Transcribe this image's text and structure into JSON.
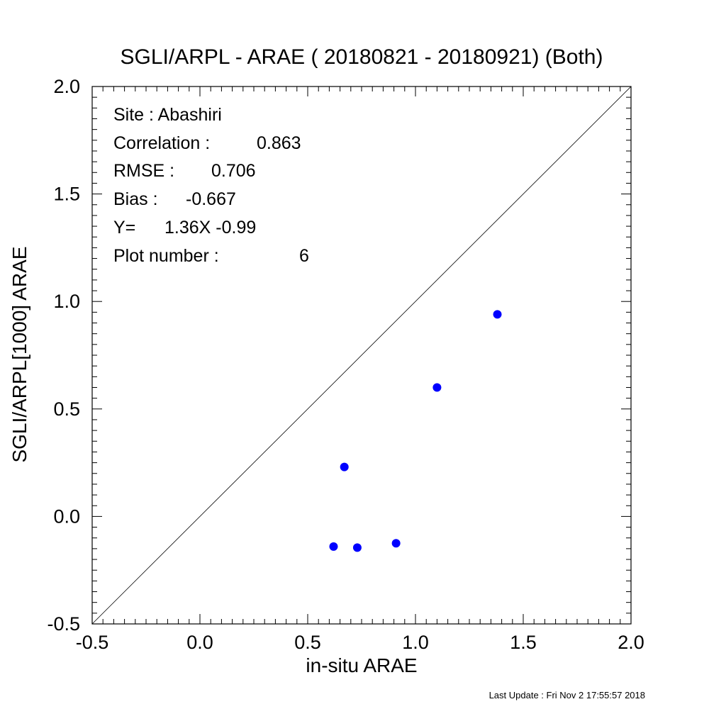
{
  "chart_data": {
    "type": "scatter",
    "title": "SGLI/ARPL - ARAE ( 20180821 - 20180921) (Both)",
    "xlabel": "in-situ ARAE",
    "ylabel": "SGLI/ARPL[1000]    ARAE",
    "xlim": [
      -0.5,
      2.0
    ],
    "ylim": [
      -0.5,
      2.0
    ],
    "x_ticks": [
      "-0.5",
      "0.0",
      "0.5",
      "1.0",
      "1.5",
      "2.0"
    ],
    "y_ticks": [
      "-0.5",
      "0.0",
      "0.5",
      "1.0",
      "1.5",
      "2.0"
    ],
    "reference_line": "1:1",
    "marker_color": "#0000ff",
    "points": [
      {
        "x": 0.62,
        "y": -0.14
      },
      {
        "x": 0.67,
        "y": 0.23
      },
      {
        "x": 0.73,
        "y": -0.145
      },
      {
        "x": 0.91,
        "y": -0.125
      },
      {
        "x": 1.1,
        "y": 0.6
      },
      {
        "x": 1.38,
        "y": 0.94
      }
    ],
    "stats": [
      {
        "label": "Site : Abashiri",
        "value": ""
      },
      {
        "label": "Correlation :",
        "value": "0.863"
      },
      {
        "label": "RMSE :",
        "value": "0.706"
      },
      {
        "label": "Bias :",
        "value": "-0.667"
      },
      {
        "label": "Y=",
        "value": "1.36X  -0.99"
      },
      {
        "label": "Plot number :",
        "value": "6"
      }
    ],
    "footer": "Last Update : Fri Nov  2 17:55:57 2018"
  }
}
